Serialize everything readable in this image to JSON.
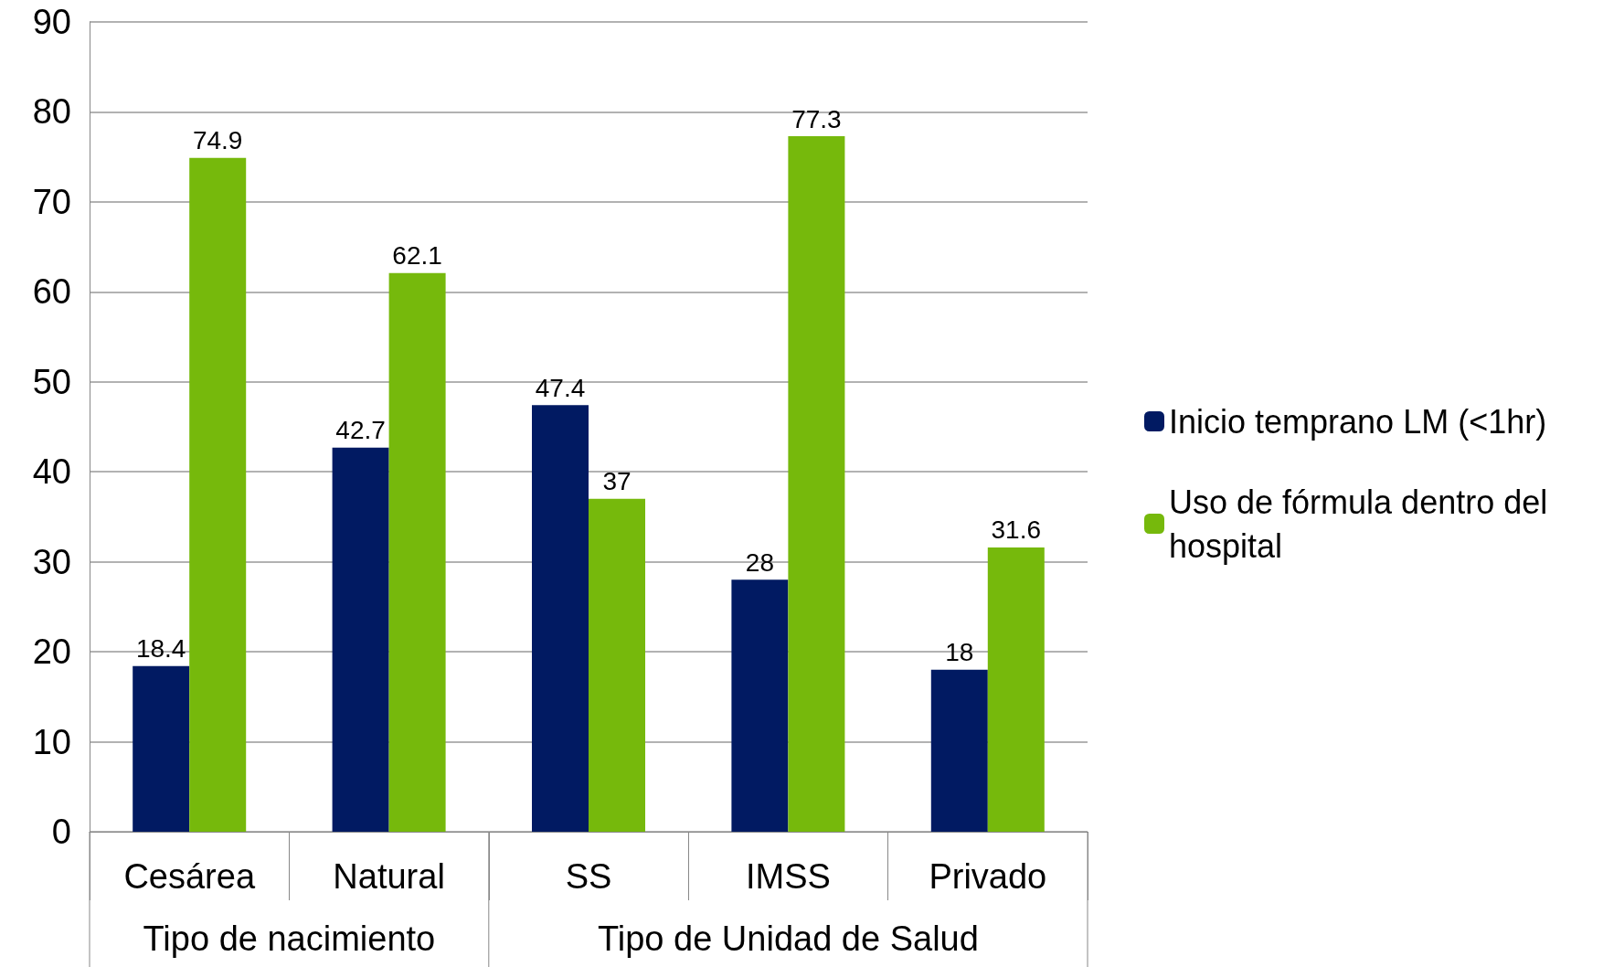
{
  "chart_data": {
    "type": "bar",
    "categories": [
      "Cesárea",
      "Natural",
      "SS",
      "IMSS",
      "Privado"
    ],
    "series": [
      {
        "name": "Inicio temprano LM (<1hr)",
        "color": "#011a62",
        "values": [
          18.4,
          42.7,
          47.4,
          28,
          18
        ]
      },
      {
        "name": "Uso de fórmula dentro del hospital",
        "color": "#76b90c",
        "values": [
          74.9,
          62.1,
          37,
          77.3,
          31.6
        ]
      }
    ],
    "ylim": [
      0,
      90
    ],
    "yticks": [
      0,
      10,
      20,
      30,
      40,
      50,
      60,
      70,
      80,
      90
    ],
    "grid": "y",
    "legend": "right",
    "data_labels": true,
    "annotations": [
      "Tipo de nacimiento",
      "Tipo de Unidad de Salud"
    ]
  }
}
